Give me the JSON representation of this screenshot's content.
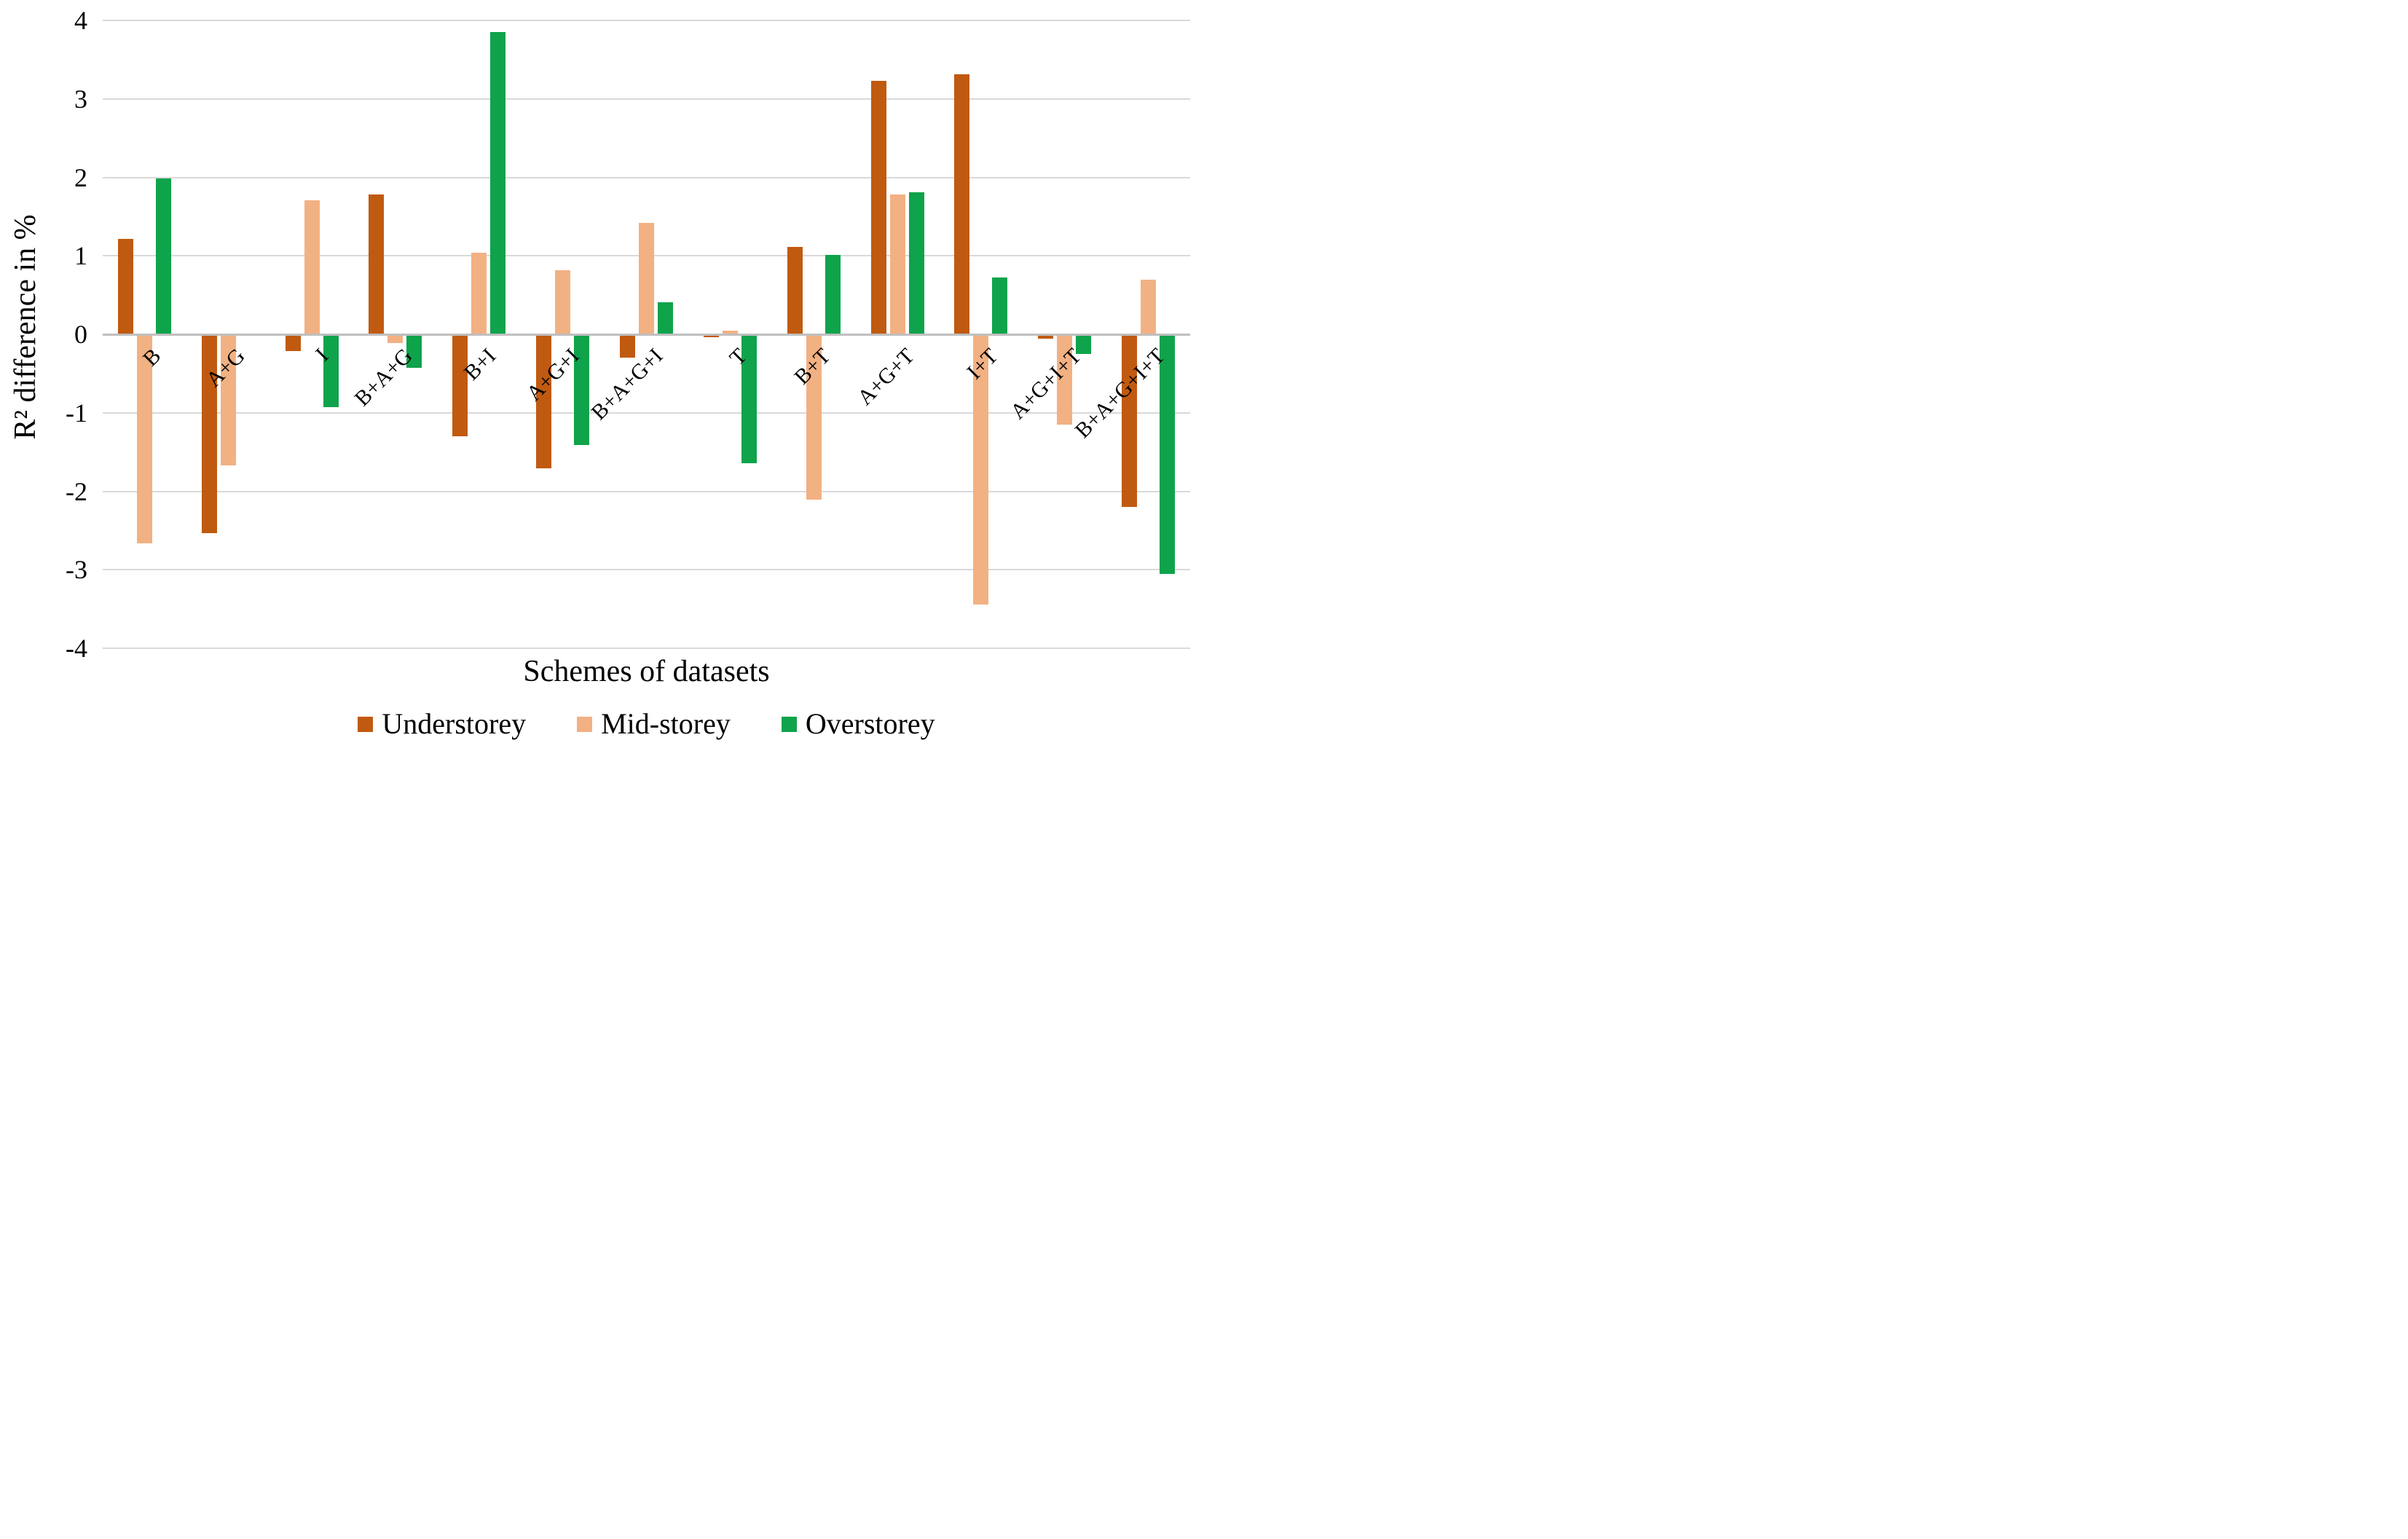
{
  "chart_data": {
    "type": "bar",
    "title": "",
    "xlabel": "Schemes of datasets",
    "ylabel": "R² difference in %",
    "ylim": [
      -4,
      4
    ],
    "yticks": [
      4,
      3,
      2,
      1,
      0,
      -1,
      -2,
      -3,
      -4
    ],
    "grid": true,
    "legend_position": "bottom-center",
    "background_color": "#ffffff",
    "gridline_color": "#d9d9d9",
    "zero_axis_color": "#bfbfbf",
    "categories": [
      "B",
      "A+G",
      "I",
      "B+A+G",
      "B+I",
      "A+G+I",
      "B+A+G+I",
      "T",
      "B+T",
      "A+G+T",
      "I+T",
      "A+G+I+T",
      "B+A+G+I+T"
    ],
    "series": [
      {
        "name": "Understorey",
        "color": "#C05A11",
        "values": [
          1.22,
          -2.53,
          -0.21,
          1.78,
          -1.3,
          -1.71,
          -0.3,
          -0.04,
          1.11,
          3.23,
          3.31,
          -0.06,
          -2.2
        ]
      },
      {
        "name": "Mid-storey",
        "color": "#F2B183",
        "values": [
          -2.66,
          -1.67,
          1.71,
          -0.11,
          1.04,
          0.82,
          1.42,
          0.05,
          -2.11,
          1.78,
          -3.44,
          -1.15,
          0.7
        ]
      },
      {
        "name": "Overstorey",
        "color": "#0FA34B",
        "values": [
          1.99,
          0,
          -0.93,
          -0.43,
          3.85,
          -1.41,
          0.41,
          -1.64,
          1.01,
          1.81,
          0.72,
          -0.25,
          -3.05
        ]
      }
    ]
  }
}
